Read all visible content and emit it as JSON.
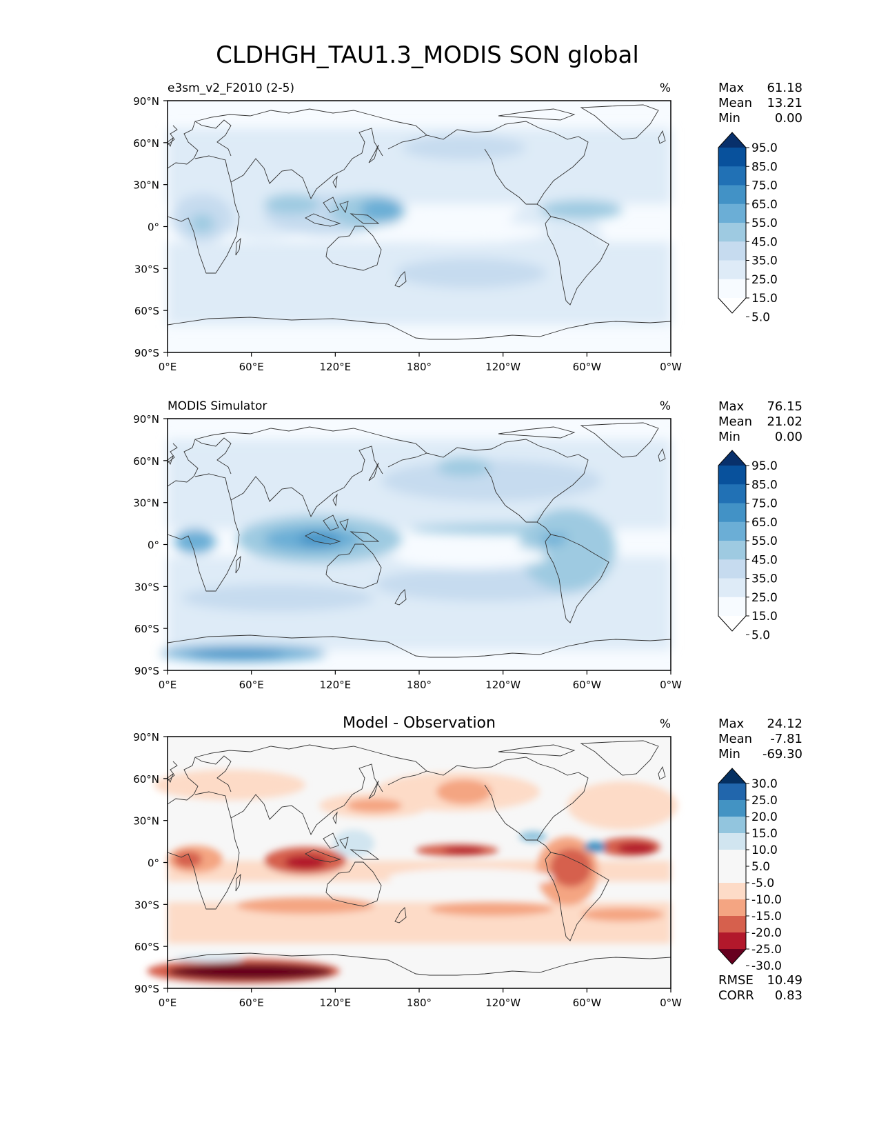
{
  "title": "CLDHGH_TAU1.3_MODIS SON global",
  "lat_ticks": [
    "90°N",
    "60°N",
    "30°N",
    "0°",
    "30°S",
    "60°S",
    "90°S"
  ],
  "lon_ticks": [
    "0°E",
    "60°E",
    "120°E",
    "180°",
    "120°W",
    "60°W",
    "0°W"
  ],
  "sequential_colors": [
    "#ffffff",
    "#f7fbff",
    "#deebf7",
    "#c6dbef",
    "#9ecae1",
    "#6baed6",
    "#4292c6",
    "#2171b5",
    "#08519c",
    "#08306b"
  ],
  "diverging_colors": [
    "#67001f",
    "#b2182b",
    "#d6604d",
    "#f4a582",
    "#fddbc7",
    "#f7f7f7",
    "#f7f7f7",
    "#d1e5f0",
    "#92c5de",
    "#4393c3",
    "#2166ac",
    "#053061"
  ],
  "panels": [
    {
      "name": "e3sm_v2_F2010 (2-5)",
      "center_title": "",
      "units": "%",
      "stats": [
        {
          "label": "Max",
          "value": "61.18"
        },
        {
          "label": "Mean",
          "value": "13.21"
        },
        {
          "label": "Min",
          "value": "0.00"
        }
      ],
      "colorbar_type": "sequential",
      "colorbar_labels": [
        "95.0",
        "85.0",
        "75.0",
        "65.0",
        "55.0",
        "45.0",
        "35.0",
        "25.0",
        "15.0",
        "5.0"
      ],
      "metrics": []
    },
    {
      "name": "MODIS Simulator",
      "center_title": "",
      "units": "%",
      "stats": [
        {
          "label": "Max",
          "value": "76.15"
        },
        {
          "label": "Mean",
          "value": "21.02"
        },
        {
          "label": "Min",
          "value": "0.00"
        }
      ],
      "colorbar_type": "sequential",
      "colorbar_labels": [
        "95.0",
        "85.0",
        "75.0",
        "65.0",
        "55.0",
        "45.0",
        "35.0",
        "25.0",
        "15.0",
        "5.0"
      ],
      "metrics": []
    },
    {
      "name": "",
      "center_title": "Model - Observation",
      "units": "%",
      "stats": [
        {
          "label": "Max",
          "value": "24.12"
        },
        {
          "label": "Mean",
          "value": "-7.81"
        },
        {
          "label": "Min",
          "value": "-69.30"
        }
      ],
      "colorbar_type": "diverging",
      "colorbar_labels": [
        "30.0",
        "25.0",
        "20.0",
        "15.0",
        "10.0",
        "5.0",
        "-5.0",
        "-10.0",
        "-15.0",
        "-20.0",
        "-25.0",
        "-30.0"
      ],
      "metrics": [
        {
          "label": "RMSE",
          "value": "10.49"
        },
        {
          "label": "CORR",
          "value": "0.83"
        }
      ]
    }
  ]
}
